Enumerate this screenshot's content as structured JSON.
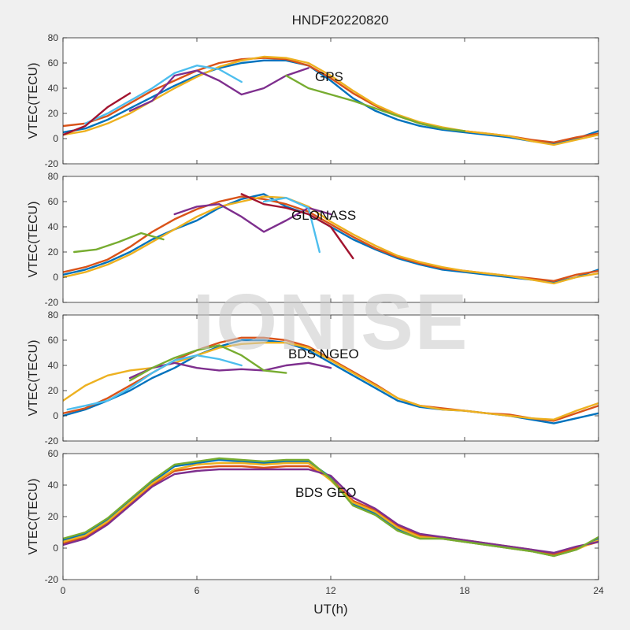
{
  "figure": {
    "title": "HNDF20220820",
    "watermark": "IONISE",
    "xlabel": "UT(h)",
    "xlim": [
      0,
      24
    ],
    "xticks": [
      0,
      6,
      12,
      18,
      24
    ],
    "colors": [
      "#0072BD",
      "#D95319",
      "#EDB120",
      "#7E2F8E",
      "#77AC30",
      "#4DBEEE",
      "#A2142F"
    ]
  },
  "chart_data": [
    {
      "type": "line",
      "annotation": "GPS",
      "ylabel": "VTEC(TECU)",
      "ylim": [
        -20,
        80
      ],
      "yticks": [
        -20,
        0,
        20,
        40,
        60,
        80
      ],
      "series": [
        {
          "x": [
            0,
            1,
            2,
            3,
            4,
            5,
            6,
            7,
            8,
            9,
            10,
            11,
            12,
            13,
            14,
            15,
            16,
            17,
            18,
            19,
            20,
            21,
            22,
            23,
            24
          ],
          "y": [
            5,
            8,
            15,
            24,
            33,
            42,
            50,
            56,
            60,
            62,
            62,
            58,
            46,
            32,
            22,
            15,
            10,
            7,
            5,
            3,
            1,
            -2,
            -4,
            0,
            6
          ]
        },
        {
          "x": [
            0,
            1,
            2,
            3,
            4,
            5,
            6,
            7,
            8,
            9,
            10,
            11,
            12,
            13,
            14,
            15,
            16,
            17,
            18,
            19,
            20,
            21,
            22,
            23,
            24
          ],
          "y": [
            10,
            12,
            18,
            28,
            38,
            46,
            54,
            60,
            63,
            64,
            63,
            58,
            48,
            36,
            26,
            18,
            12,
            8,
            6,
            4,
            2,
            -1,
            -3,
            1,
            4
          ]
        },
        {
          "x": [
            0,
            1,
            2,
            3,
            4,
            5,
            6,
            7,
            8,
            9,
            10,
            11,
            12,
            13,
            14,
            15,
            16,
            17,
            18,
            19,
            20,
            21,
            22,
            23,
            24
          ],
          "y": [
            3,
            6,
            12,
            20,
            30,
            40,
            49,
            57,
            62,
            65,
            64,
            60,
            50,
            38,
            27,
            19,
            13,
            9,
            6,
            4,
            2,
            -2,
            -5,
            -1,
            3
          ]
        },
        {
          "x": [
            3,
            4,
            5,
            6,
            7,
            8,
            9,
            10,
            11
          ],
          "y": [
            22,
            30,
            50,
            54,
            46,
            35,
            40,
            50,
            56
          ]
        },
        {
          "x": [
            10,
            11,
            12,
            13,
            14,
            15,
            16,
            17,
            18
          ],
          "y": [
            50,
            40,
            35,
            30,
            24,
            18,
            12,
            8,
            6
          ]
        },
        {
          "x": [
            1,
            2,
            3,
            4,
            5,
            6,
            7,
            8
          ],
          "y": [
            12,
            20,
            30,
            40,
            52,
            58,
            55,
            45
          ]
        },
        {
          "x": [
            0,
            1,
            2,
            3
          ],
          "y": [
            3,
            10,
            25,
            36
          ]
        }
      ]
    },
    {
      "type": "line",
      "annotation": "GLONASS",
      "ylabel": "VTEC(TECU)",
      "ylim": [
        -20,
        80
      ],
      "yticks": [
        -20,
        0,
        20,
        40,
        60,
        80
      ],
      "series": [
        {
          "x": [
            0,
            1,
            2,
            3,
            4,
            5,
            6,
            7,
            8,
            9,
            10,
            11,
            12,
            13,
            14,
            15,
            16,
            17,
            18,
            19,
            20,
            21,
            22,
            23,
            24
          ],
          "y": [
            2,
            6,
            12,
            20,
            30,
            38,
            45,
            55,
            62,
            66,
            56,
            50,
            40,
            30,
            22,
            15,
            10,
            6,
            4,
            2,
            0,
            -2,
            -4,
            0,
            6
          ]
        },
        {
          "x": [
            0,
            1,
            2,
            3,
            4,
            5,
            6,
            7,
            8,
            9,
            10,
            11,
            12,
            13,
            14,
            15,
            16,
            17,
            18,
            19,
            20,
            21,
            22,
            23,
            24
          ],
          "y": [
            4,
            8,
            14,
            24,
            36,
            46,
            54,
            60,
            64,
            62,
            58,
            52,
            42,
            32,
            23,
            16,
            11,
            7,
            5,
            3,
            1,
            -1,
            -3,
            2,
            5
          ]
        },
        {
          "x": [
            0,
            1,
            2,
            3,
            4,
            5,
            6,
            7,
            8,
            9,
            10,
            11,
            12,
            13,
            14,
            15,
            16,
            17,
            18,
            19,
            20,
            21,
            22,
            23,
            24
          ],
          "y": [
            0,
            4,
            10,
            18,
            28,
            38,
            48,
            56,
            60,
            64,
            63,
            56,
            44,
            34,
            25,
            17,
            12,
            8,
            5,
            3,
            1,
            -2,
            -5,
            0,
            3
          ]
        },
        {
          "x": [
            5,
            6,
            7,
            8,
            9,
            10,
            11,
            12
          ],
          "y": [
            50,
            56,
            58,
            48,
            36,
            45,
            55,
            50
          ]
        },
        {
          "x": [
            0.5,
            1.5,
            2.5,
            3.5,
            4.5
          ],
          "y": [
            20,
            22,
            28,
            35,
            30
          ]
        },
        {
          "x": [
            9,
            10,
            11,
            11.5
          ],
          "y": [
            60,
            63,
            55,
            20
          ]
        },
        {
          "x": [
            8,
            9,
            10,
            11,
            12,
            13
          ],
          "y": [
            66,
            58,
            55,
            50,
            40,
            15
          ]
        }
      ]
    },
    {
      "type": "line",
      "annotation": "BDS NGEO",
      "ylabel": "VTEC(TECU)",
      "ylim": [
        -20,
        80
      ],
      "yticks": [
        -20,
        0,
        20,
        40,
        60,
        80
      ],
      "series": [
        {
          "x": [
            0,
            1,
            2,
            3,
            4,
            5,
            6,
            7,
            8,
            9,
            10,
            11,
            12,
            13,
            14,
            15,
            16,
            17,
            18,
            19,
            20,
            21,
            22,
            23,
            24
          ],
          "y": [
            0,
            5,
            12,
            20,
            30,
            38,
            48,
            55,
            60,
            60,
            58,
            52,
            42,
            32,
            22,
            12,
            7,
            5,
            4,
            2,
            0,
            -3,
            -6,
            -2,
            2
          ]
        },
        {
          "x": [
            0,
            1,
            2,
            3,
            4,
            5,
            6,
            7,
            8,
            9,
            10,
            11,
            12,
            13,
            14,
            15,
            16,
            17,
            18,
            19,
            20,
            21,
            22,
            23,
            24
          ],
          "y": [
            2,
            6,
            14,
            24,
            34,
            44,
            52,
            58,
            62,
            62,
            60,
            55,
            45,
            35,
            25,
            14,
            8,
            6,
            4,
            2,
            1,
            -2,
            -4,
            2,
            8
          ]
        },
        {
          "x": [
            0,
            1,
            2,
            3,
            4,
            5,
            6,
            7,
            8,
            9,
            10,
            11,
            12,
            13,
            14,
            15,
            16,
            17,
            18,
            19,
            20,
            21,
            22,
            23,
            24
          ],
          "y": [
            12,
            24,
            32,
            36,
            38,
            42,
            48,
            54,
            57,
            58,
            58,
            54,
            44,
            34,
            24,
            14,
            8,
            5,
            4,
            2,
            0,
            -2,
            -3,
            4,
            10
          ]
        },
        {
          "x": [
            3,
            4,
            5,
            6,
            7,
            8,
            9,
            10,
            11,
            12
          ],
          "y": [
            30,
            38,
            42,
            38,
            36,
            37,
            36,
            40,
            42,
            38
          ]
        },
        {
          "x": [
            3,
            4,
            5,
            6,
            7,
            8,
            9,
            10
          ],
          "y": [
            28,
            38,
            46,
            52,
            56,
            48,
            36,
            34
          ]
        },
        {
          "x": [
            0.2,
            1,
            2,
            3,
            4,
            5,
            6,
            7,
            8
          ],
          "y": [
            5,
            8,
            12,
            22,
            34,
            44,
            48,
            45,
            40
          ]
        }
      ]
    },
    {
      "type": "line",
      "annotation": "BDS GEO",
      "ylabel": "VTEC(TECU)",
      "ylim": [
        -20,
        60
      ],
      "yticks": [
        -20,
        0,
        20,
        40,
        60
      ],
      "series": [
        {
          "x": [
            0,
            1,
            2,
            3,
            4,
            5,
            6,
            7,
            8,
            9,
            10,
            11,
            12,
            13,
            14,
            15,
            16,
            17,
            18,
            19,
            20,
            21,
            22,
            23,
            24
          ],
          "y": [
            5,
            9,
            18,
            30,
            42,
            52,
            54,
            56,
            55,
            54,
            55,
            55,
            45,
            28,
            22,
            12,
            7,
            6,
            4,
            2,
            0,
            -2,
            -5,
            -1,
            6
          ]
        },
        {
          "x": [
            0,
            1,
            2,
            3,
            4,
            5,
            6,
            7,
            8,
            9,
            10,
            11,
            12,
            13,
            14,
            15,
            16,
            17,
            18,
            19,
            20,
            21,
            22,
            23,
            24
          ],
          "y": [
            3,
            7,
            16,
            28,
            40,
            49,
            51,
            52,
            52,
            51,
            52,
            52,
            44,
            30,
            24,
            14,
            8,
            7,
            5,
            3,
            1,
            -1,
            -4,
            0,
            4
          ]
        },
        {
          "x": [
            0,
            1,
            2,
            3,
            4,
            5,
            6,
            7,
            8,
            9,
            10,
            11,
            12,
            13,
            14,
            15,
            16,
            17,
            18,
            19,
            20,
            21,
            22,
            23,
            24
          ],
          "y": [
            4,
            8,
            17,
            29,
            41,
            50,
            53,
            54,
            54,
            53,
            54,
            54,
            43,
            29,
            23,
            13,
            7,
            6,
            4,
            2,
            0,
            -2,
            -5,
            -1,
            5
          ]
        },
        {
          "x": [
            0,
            1,
            2,
            3,
            4,
            5,
            6,
            7,
            8,
            9,
            10,
            11,
            12,
            13,
            14,
            15,
            16,
            17,
            18,
            19,
            20,
            21,
            22,
            23,
            24
          ],
          "y": [
            2,
            6,
            15,
            27,
            39,
            47,
            49,
            50,
            50,
            50,
            50,
            50,
            46,
            32,
            25,
            15,
            9,
            7,
            5,
            3,
            1,
            -1,
            -3,
            1,
            4
          ]
        },
        {
          "x": [
            0,
            1,
            2,
            3,
            4,
            5,
            6,
            7,
            8,
            9,
            10,
            11,
            12,
            13,
            14,
            15,
            16,
            17,
            18,
            19,
            20,
            21,
            22,
            23,
            24
          ],
          "y": [
            6,
            10,
            19,
            31,
            43,
            53,
            55,
            57,
            56,
            55,
            56,
            56,
            44,
            27,
            21,
            11,
            6,
            6,
            4,
            2,
            0,
            -2,
            -5,
            -1,
            7
          ]
        }
      ]
    }
  ]
}
